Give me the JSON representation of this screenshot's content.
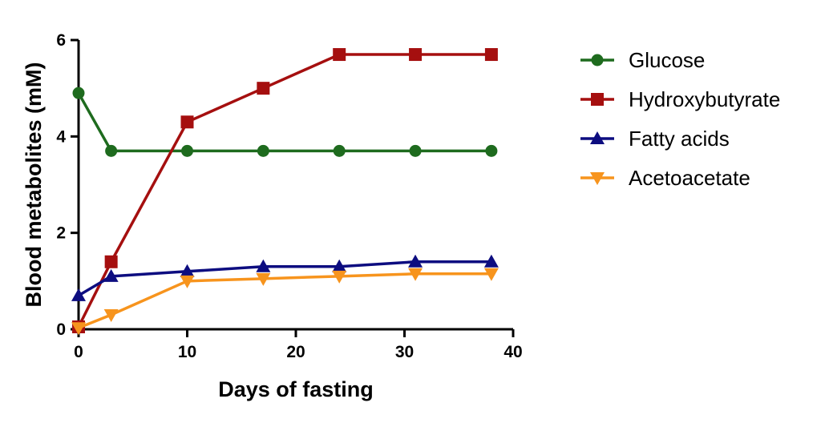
{
  "chart_data": {
    "type": "line",
    "xlabel": "Days of fasting",
    "ylabel": "Blood metabolites (mM)",
    "xlim": [
      0,
      40
    ],
    "ylim": [
      0,
      6
    ],
    "xticks": [
      0,
      10,
      20,
      30,
      40
    ],
    "yticks": [
      0,
      2,
      4,
      6
    ],
    "grid": false,
    "legend_position": "right",
    "series": [
      {
        "name": "Glucose",
        "color": "#1e6b1e",
        "marker": "circle",
        "x": [
          0,
          3,
          10,
          17,
          24,
          31,
          38
        ],
        "y": [
          4.9,
          3.7,
          3.7,
          3.7,
          3.7,
          3.7,
          3.7
        ]
      },
      {
        "name": "Hydroxybutyrate",
        "color": "#a50f0f",
        "marker": "square",
        "x": [
          0,
          3,
          10,
          17,
          24,
          31,
          38
        ],
        "y": [
          0.05,
          1.4,
          4.3,
          5.0,
          5.7,
          5.7,
          5.7
        ]
      },
      {
        "name": "Fatty acids",
        "color": "#0d0d80",
        "marker": "triangle-up",
        "x": [
          0,
          3,
          10,
          17,
          24,
          31,
          38
        ],
        "y": [
          0.7,
          1.1,
          1.2,
          1.3,
          1.3,
          1.4,
          1.4
        ]
      },
      {
        "name": "Acetoacetate",
        "color": "#f7941d",
        "marker": "triangle-down",
        "x": [
          0,
          3,
          10,
          17,
          24,
          31,
          38
        ],
        "y": [
          0.03,
          0.3,
          1.0,
          1.05,
          1.1,
          1.15,
          1.15
        ]
      }
    ]
  }
}
